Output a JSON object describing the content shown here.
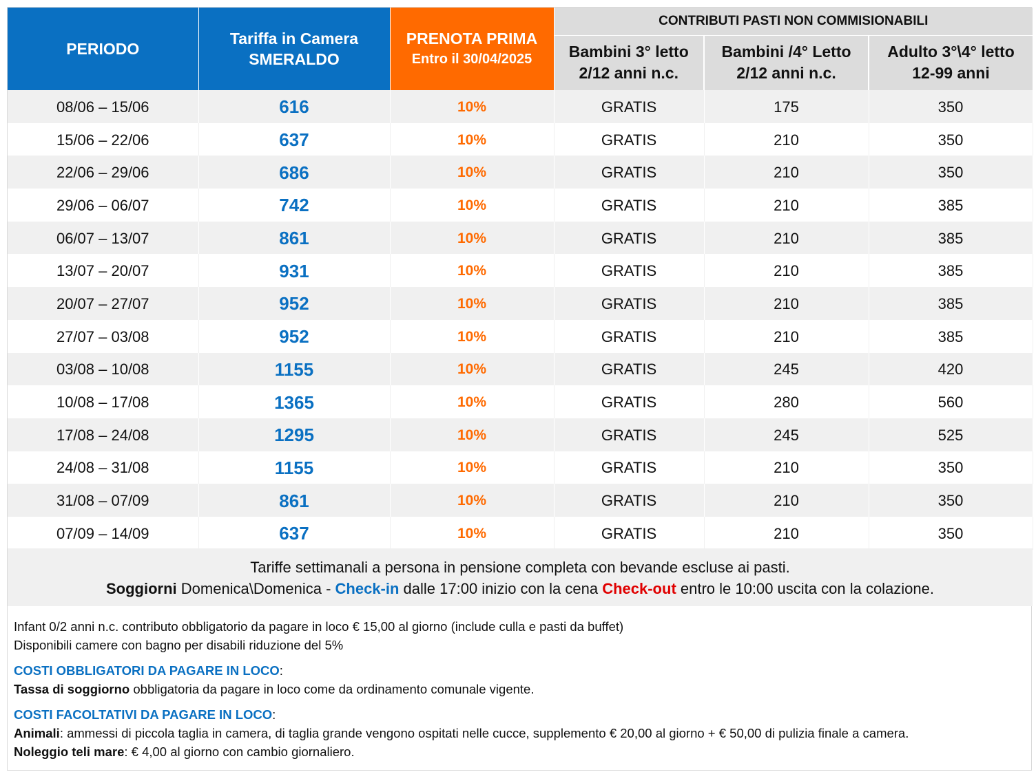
{
  "header": {
    "periodo": "PERIODO",
    "tariffa_line1": "Tariffa in Camera",
    "tariffa_line2": "SMERALDO",
    "prenota_title": "PRENOTA PRIMA",
    "prenota_date": "Entro il 30/04/2025",
    "contributi": "CONTRIBUTI PASTI NON COMMISIONABILI",
    "sub": [
      {
        "line1": "Bambini 3° letto",
        "line2": "2/12 anni n.c."
      },
      {
        "line1": "Bambini /4° Letto",
        "line2": "2/12 anni n.c."
      },
      {
        "line1": "Adulto 3°\\4° letto",
        "line2": "12-99 anni"
      }
    ]
  },
  "rows": [
    {
      "periodo": "08/06 – 15/06",
      "tariffa": "616",
      "prenota": "10%",
      "bambini3": "GRATIS",
      "bambini4": "175",
      "adulto": "350"
    },
    {
      "periodo": "15/06 – 22/06",
      "tariffa": "637",
      "prenota": "10%",
      "bambini3": "GRATIS",
      "bambini4": "210",
      "adulto": "350"
    },
    {
      "periodo": "22/06 – 29/06",
      "tariffa": "686",
      "prenota": "10%",
      "bambini3": "GRATIS",
      "bambini4": "210",
      "adulto": "350"
    },
    {
      "periodo": "29/06 – 06/07",
      "tariffa": "742",
      "prenota": "10%",
      "bambini3": "GRATIS",
      "bambini4": "210",
      "adulto": "385"
    },
    {
      "periodo": "06/07 – 13/07",
      "tariffa": "861",
      "prenota": "10%",
      "bambini3": "GRATIS",
      "bambini4": "210",
      "adulto": "385"
    },
    {
      "periodo": "13/07 – 20/07",
      "tariffa": "931",
      "prenota": "10%",
      "bambini3": "GRATIS",
      "bambini4": "210",
      "adulto": "385"
    },
    {
      "periodo": "20/07 – 27/07",
      "tariffa": "952",
      "prenota": "10%",
      "bambini3": "GRATIS",
      "bambini4": "210",
      "adulto": "385"
    },
    {
      "periodo": "27/07 – 03/08",
      "tariffa": "952",
      "prenota": "10%",
      "bambini3": "GRATIS",
      "bambini4": "210",
      "adulto": "385"
    },
    {
      "periodo": "03/08 – 10/08",
      "tariffa": "1155",
      "prenota": "10%",
      "bambini3": "GRATIS",
      "bambini4": "245",
      "adulto": "420"
    },
    {
      "periodo": "10/08 – 17/08",
      "tariffa": "1365",
      "prenota": "10%",
      "bambini3": "GRATIS",
      "bambini4": "280",
      "adulto": "560"
    },
    {
      "periodo": "17/08 – 24/08",
      "tariffa": "1295",
      "prenota": "10%",
      "bambini3": "GRATIS",
      "bambini4": "245",
      "adulto": "525"
    },
    {
      "periodo": "24/08 – 31/08",
      "tariffa": "1155",
      "prenota": "10%",
      "bambini3": "GRATIS",
      "bambini4": "210",
      "adulto": "350"
    },
    {
      "periodo": "31/08 – 07/09",
      "tariffa": "861",
      "prenota": "10%",
      "bambini3": "GRATIS",
      "bambini4": "210",
      "adulto": "350"
    },
    {
      "periodo": "07/09 – 14/09",
      "tariffa": "637",
      "prenota": "10%",
      "bambini3": "GRATIS",
      "bambini4": "210",
      "adulto": "350"
    }
  ],
  "note": {
    "line1": "Tariffe settimanali a persona in pensione completa con bevande escluse ai pasti.",
    "soggiorni": "Soggiorni",
    "domenica": " Domenica\\Domenica - ",
    "checkin": "Check-in",
    "checkin_text": " dalle 17:00 inizio con la cena ",
    "checkout": "Check-out",
    "checkout_text": " entro le 10:00 uscita con la colazione."
  },
  "info": {
    "infant": "Infant 0/2 anni n.c. contributo obbligatorio da pagare in loco € 15,00 al giorno (include culla e pasti da buffet)",
    "disabili": "Disponibili camere con bagno per disabili riduzione del 5%",
    "obbligatori_title": "COSTI OBBLIGATORI DA PAGARE IN LOCO",
    "colon": ":",
    "tassa_label": "Tassa di soggiorno",
    "tassa_text": " obbligatoria da pagare in loco come da ordinamento comunale vigente.",
    "facoltativi_title": "COSTI FACOLTATIVI DA PAGARE IN LOCO",
    "animali_label": "Animali",
    "animali_text": ": ammessi di piccola taglia in camera, di taglia grande vengono ospitati nelle cucce, supplemento € 20,00 al giorno + € 50,00 di pulizia finale a camera.",
    "teli_label": "Noleggio teli mare",
    "teli_text": ": € 4,00 al giorno con cambio giornaliero."
  },
  "colors": {
    "blue": "#0a70c2",
    "orange": "#ff6a00",
    "red": "#e00000",
    "header_gray": "#dcdcdc",
    "row_gray": "#f0f0f0"
  }
}
